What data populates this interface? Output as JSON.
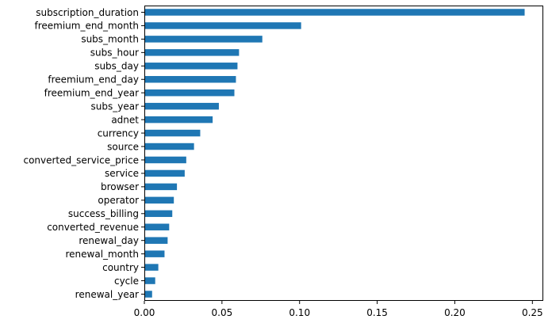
{
  "chart_data": {
    "type": "bar",
    "orientation": "horizontal",
    "categories": [
      "subscription_duration",
      "freemium_end_month",
      "subs_month",
      "subs_hour",
      "subs_day",
      "freemium_end_day",
      "freemium_end_year",
      "subs_year",
      "adnet",
      "currency",
      "source",
      "converted_service_price",
      "service",
      "browser",
      "operator",
      "success_billing",
      "converted_revenue",
      "renewal_day",
      "renewal_month",
      "country",
      "cycle",
      "renewal_year"
    ],
    "values": [
      0.245,
      0.101,
      0.076,
      0.061,
      0.06,
      0.059,
      0.058,
      0.048,
      0.044,
      0.036,
      0.032,
      0.027,
      0.026,
      0.021,
      0.019,
      0.018,
      0.016,
      0.015,
      0.013,
      0.009,
      0.007,
      0.005
    ],
    "xticks": [
      "0.00",
      "0.05",
      "0.10",
      "0.15",
      "0.20",
      "0.25"
    ],
    "xlim": [
      0,
      0.257
    ],
    "title": "",
    "xlabel": "",
    "ylabel": "",
    "bar_color": "#1f77b4",
    "grid": false
  }
}
